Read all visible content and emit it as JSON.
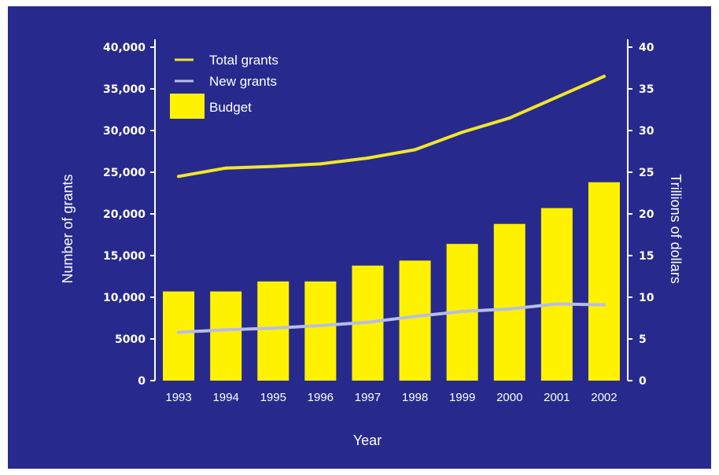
{
  "chart_data": {
    "type": "bar",
    "title": "",
    "xlabel": "Year",
    "ylabel_left": "Number of grants",
    "ylabel_right": "Trillions of dollars",
    "categories": [
      "1993",
      "1994",
      "1995",
      "1996",
      "1997",
      "1998",
      "1999",
      "2000",
      "2001",
      "2002"
    ],
    "y_left": {
      "min": 0,
      "max": 40000,
      "ticks": [
        0,
        5000,
        10000,
        15000,
        20000,
        25000,
        30000,
        35000,
        40000
      ],
      "tick_labels": [
        "0",
        "5000",
        "10,000",
        "15,000",
        "20,000",
        "25,000",
        "30,000",
        "35,000",
        "40,000"
      ]
    },
    "y_right": {
      "min": 0,
      "max": 40,
      "ticks": [
        0,
        5,
        10,
        15,
        20,
        25,
        30,
        35,
        40
      ],
      "tick_labels": [
        "0",
        "5",
        "10",
        "15",
        "20",
        "25",
        "30",
        "35",
        "40"
      ]
    },
    "grid": false,
    "legend": "top-left",
    "series": [
      {
        "name": "Total grants",
        "kind": "line",
        "axis": "left",
        "color": "#f2e62a",
        "values": [
          24500,
          25500,
          25700,
          26000,
          26700,
          27700,
          29800,
          31500,
          34000,
          36500
        ]
      },
      {
        "name": "New grants",
        "kind": "line",
        "axis": "left",
        "color": "#b8bde6",
        "values": [
          5800,
          6100,
          6300,
          6600,
          7000,
          7700,
          8300,
          8600,
          9200,
          9100
        ]
      },
      {
        "name": "Budget",
        "kind": "bar",
        "axis": "right",
        "color": "#fff200",
        "values": [
          10.7,
          10.7,
          11.9,
          11.9,
          13.8,
          14.4,
          16.4,
          18.8,
          20.7,
          23.8
        ]
      }
    ]
  }
}
